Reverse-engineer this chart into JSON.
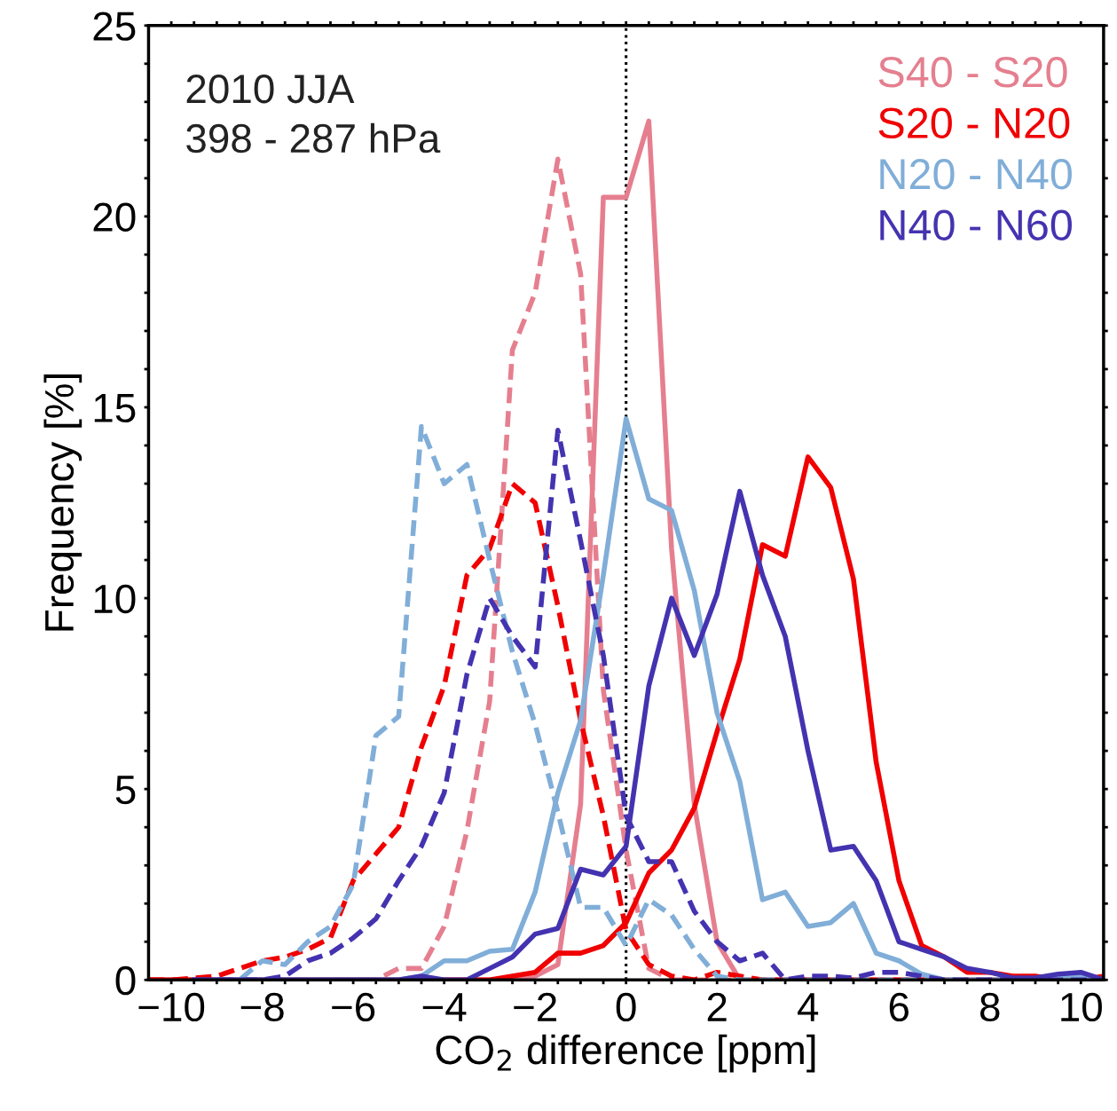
{
  "chart_data": {
    "type": "line",
    "xlabel": "CO$_{2}$ difference [ppm]",
    "ylabel": "Frequency [%]",
    "annotations": [
      "2010 JJA",
      "398 - 287 hPa"
    ],
    "x": [
      -10.5,
      -10,
      -9.5,
      -9,
      -8.5,
      -8,
      -7.5,
      -7,
      -6.5,
      -6,
      -5.5,
      -5,
      -4.5,
      -4,
      -3.5,
      -3,
      -2.5,
      -2,
      -1.5,
      -1,
      -0.5,
      0,
      0.5,
      1,
      1.5,
      2,
      2.5,
      3,
      3.5,
      4,
      4.5,
      5,
      5.5,
      6,
      6.5,
      7,
      7.5,
      8,
      8.5,
      9,
      9.5,
      10,
      10.5
    ],
    "xlim": [
      -10.5,
      10.5
    ],
    "xticks": [
      {
        "value": -10,
        "label": "−10"
      },
      {
        "value": -9.5,
        "label": null
      },
      {
        "value": -9,
        "label": null
      },
      {
        "value": -8.5,
        "label": null
      },
      {
        "value": -8,
        "label": "−8"
      },
      {
        "value": -7.5,
        "label": null
      },
      {
        "value": -7,
        "label": null
      },
      {
        "value": -6.5,
        "label": null
      },
      {
        "value": -6,
        "label": "−6"
      },
      {
        "value": -5.5,
        "label": null
      },
      {
        "value": -5,
        "label": null
      },
      {
        "value": -4.5,
        "label": null
      },
      {
        "value": -4,
        "label": "−4"
      },
      {
        "value": -3.5,
        "label": null
      },
      {
        "value": -3,
        "label": null
      },
      {
        "value": -2.5,
        "label": null
      },
      {
        "value": -2,
        "label": "−2"
      },
      {
        "value": -1.5,
        "label": null
      },
      {
        "value": -1,
        "label": null
      },
      {
        "value": -0.5,
        "label": null
      },
      0,
      {
        "value": 0.5,
        "label": null
      },
      {
        "value": 1,
        "label": null
      },
      {
        "value": 1.5,
        "label": null
      },
      2,
      {
        "value": 2.5,
        "label": null
      },
      {
        "value": 3,
        "label": null
      },
      {
        "value": 3.5,
        "label": null
      },
      4,
      {
        "value": 4.5,
        "label": null
      },
      {
        "value": 5,
        "label": null
      },
      {
        "value": 5.5,
        "label": null
      },
      6,
      {
        "value": 6.5,
        "label": null
      },
      {
        "value": 7,
        "label": null
      },
      {
        "value": 7.5,
        "label": null
      },
      8,
      {
        "value": 8.5,
        "label": null
      },
      {
        "value": 9,
        "label": null
      },
      {
        "value": 9.5,
        "label": null
      },
      10
    ],
    "ylim": [
      0,
      25
    ],
    "yticks": [
      0,
      {
        "value": 1,
        "label": null
      },
      {
        "value": 2,
        "label": null
      },
      {
        "value": 3,
        "label": null
      },
      {
        "value": 4,
        "label": null
      },
      5,
      {
        "value": 6,
        "label": null
      },
      {
        "value": 7,
        "label": null
      },
      {
        "value": 8,
        "label": null
      },
      {
        "value": 9,
        "label": null
      },
      10,
      {
        "value": 11,
        "label": null
      },
      {
        "value": 12,
        "label": null
      },
      {
        "value": 13,
        "label": null
      },
      {
        "value": 14,
        "label": null
      },
      15,
      {
        "value": 16,
        "label": null
      },
      {
        "value": 17,
        "label": null
      },
      {
        "value": 18,
        "label": null
      },
      {
        "value": 19,
        "label": null
      },
      20,
      {
        "value": 21,
        "label": null
      },
      {
        "value": 22,
        "label": null
      },
      {
        "value": 23,
        "label": null
      },
      {
        "value": 24,
        "label": null
      },
      25
    ],
    "ref_lines": [
      {
        "axis": "x",
        "value": 0,
        "label": null,
        "color": "#000000",
        "line_style": "dotted"
      }
    ],
    "grid": false,
    "legend": "top right",
    "marker": "none",
    "series": [
      {
        "name": "S40 - S20",
        "color": "#e57f8f",
        "line_style": "solid",
        "values": [
          0,
          0,
          0,
          0,
          0,
          0,
          0,
          0,
          0,
          0,
          0,
          0,
          0,
          0,
          0,
          0,
          0,
          0.1,
          0.4,
          4.6,
          20.5,
          20.5,
          22.5,
          11.3,
          4.6,
          1.0,
          0,
          0,
          0,
          0,
          0,
          0,
          0,
          0,
          0,
          0,
          null,
          null,
          null,
          null,
          null,
          null,
          null
        ]
      },
      {
        "color": "#e57f8f",
        "line_style": "dashed",
        "values": [
          0,
          0,
          0,
          0,
          0,
          0,
          0,
          0,
          0,
          0,
          0,
          0.3,
          0.3,
          1.4,
          3.9,
          7.3,
          16.5,
          18,
          21.5,
          18.5,
          7.6,
          3.4,
          0.3,
          0,
          0,
          0,
          0,
          0,
          0,
          0,
          0,
          0,
          0,
          0,
          0,
          0,
          0,
          0,
          0,
          0,
          0,
          0,
          0
        ]
      },
      {
        "name": "S20 - N20",
        "color": "#f00000",
        "line_style": "solid",
        "values": [
          0,
          0,
          0,
          0,
          0,
          0,
          0,
          0,
          0,
          0,
          0,
          0,
          0,
          0,
          0,
          0,
          0.1,
          0.2,
          0.7,
          0.7,
          0.9,
          1.5,
          2.8,
          3.4,
          4.5,
          6.5,
          8.4,
          11.4,
          11.1,
          13.7,
          12.9,
          10.5,
          5.7,
          2.6,
          0.9,
          0.6,
          0.2,
          0.2,
          0.1,
          0.1,
          0,
          0,
          0.1
        ]
      },
      {
        "color": "#f00000",
        "line_style": "dashed",
        "values": [
          0,
          0,
          0.05,
          0.1,
          0.3,
          0.5,
          0.6,
          0.8,
          1.1,
          2.6,
          3.3,
          4.0,
          6.1,
          7.7,
          10.6,
          11.3,
          13.0,
          12.5,
          9.8,
          6.8,
          4.3,
          1.3,
          0.4,
          0.1,
          0,
          0.2,
          0.1,
          0,
          0,
          0,
          0,
          0,
          0,
          0,
          0,
          0,
          0,
          0,
          0,
          0,
          0,
          0,
          0
        ]
      },
      {
        "name": "N20 - N40",
        "color": "#80aed8",
        "line_style": "solid",
        "values": [
          null,
          null,
          null,
          0,
          0,
          0,
          0,
          0,
          0,
          0,
          0,
          0,
          0.1,
          0.5,
          0.5,
          0.75,
          0.8,
          2.3,
          4.9,
          6.8,
          10.6,
          14.7,
          12.6,
          12.3,
          10.2,
          7.0,
          5.2,
          2.1,
          2.3,
          1.4,
          1.5,
          2.0,
          0.7,
          0.5,
          0.15,
          0,
          0,
          0,
          0,
          0,
          0.05,
          0.1,
          0
        ]
      },
      {
        "color": "#80aed8",
        "line_style": "dashed",
        "values": [
          null,
          null,
          null,
          0,
          0,
          0.5,
          0.4,
          1.0,
          1.4,
          2.5,
          6.4,
          6.9,
          14.5,
          13.0,
          13.5,
          11.0,
          8.6,
          6.7,
          4.4,
          1.9,
          1.9,
          0.9,
          2.1,
          1.7,
          0.8,
          0.1,
          0,
          0,
          0,
          0,
          0,
          0,
          0,
          0,
          0,
          0,
          0,
          0,
          0,
          0,
          0,
          0,
          0
        ]
      },
      {
        "name": "N40 - N60",
        "color": "#4433b0",
        "line_style": "solid",
        "values": [
          null,
          null,
          0,
          0,
          0,
          0,
          0,
          0,
          0,
          0,
          0,
          0,
          0.1,
          0,
          0,
          0.3,
          0.6,
          1.2,
          1.35,
          2.9,
          2.75,
          3.5,
          7.7,
          10.0,
          8.5,
          10.1,
          12.8,
          10.6,
          9.0,
          6.0,
          3.4,
          3.5,
          2.6,
          1.0,
          0.8,
          0.6,
          0.3,
          0.2,
          0.05,
          0.05,
          0.15,
          0.2,
          0
        ]
      },
      {
        "color": "#4433b0",
        "line_style": "dashed",
        "values": [
          null,
          null,
          0,
          0,
          0,
          0,
          0.1,
          0.5,
          0.7,
          1.1,
          1.6,
          2.6,
          3.5,
          4.9,
          8.0,
          10.0,
          9.0,
          8.2,
          14.4,
          11.5,
          8.5,
          4.3,
          3.1,
          3.1,
          1.8,
          1.0,
          0.5,
          0.7,
          0,
          0.1,
          0.1,
          0.05,
          0.2,
          0.2,
          0.1,
          0,
          0,
          0,
          0,
          0,
          0,
          0,
          0
        ]
      }
    ]
  }
}
